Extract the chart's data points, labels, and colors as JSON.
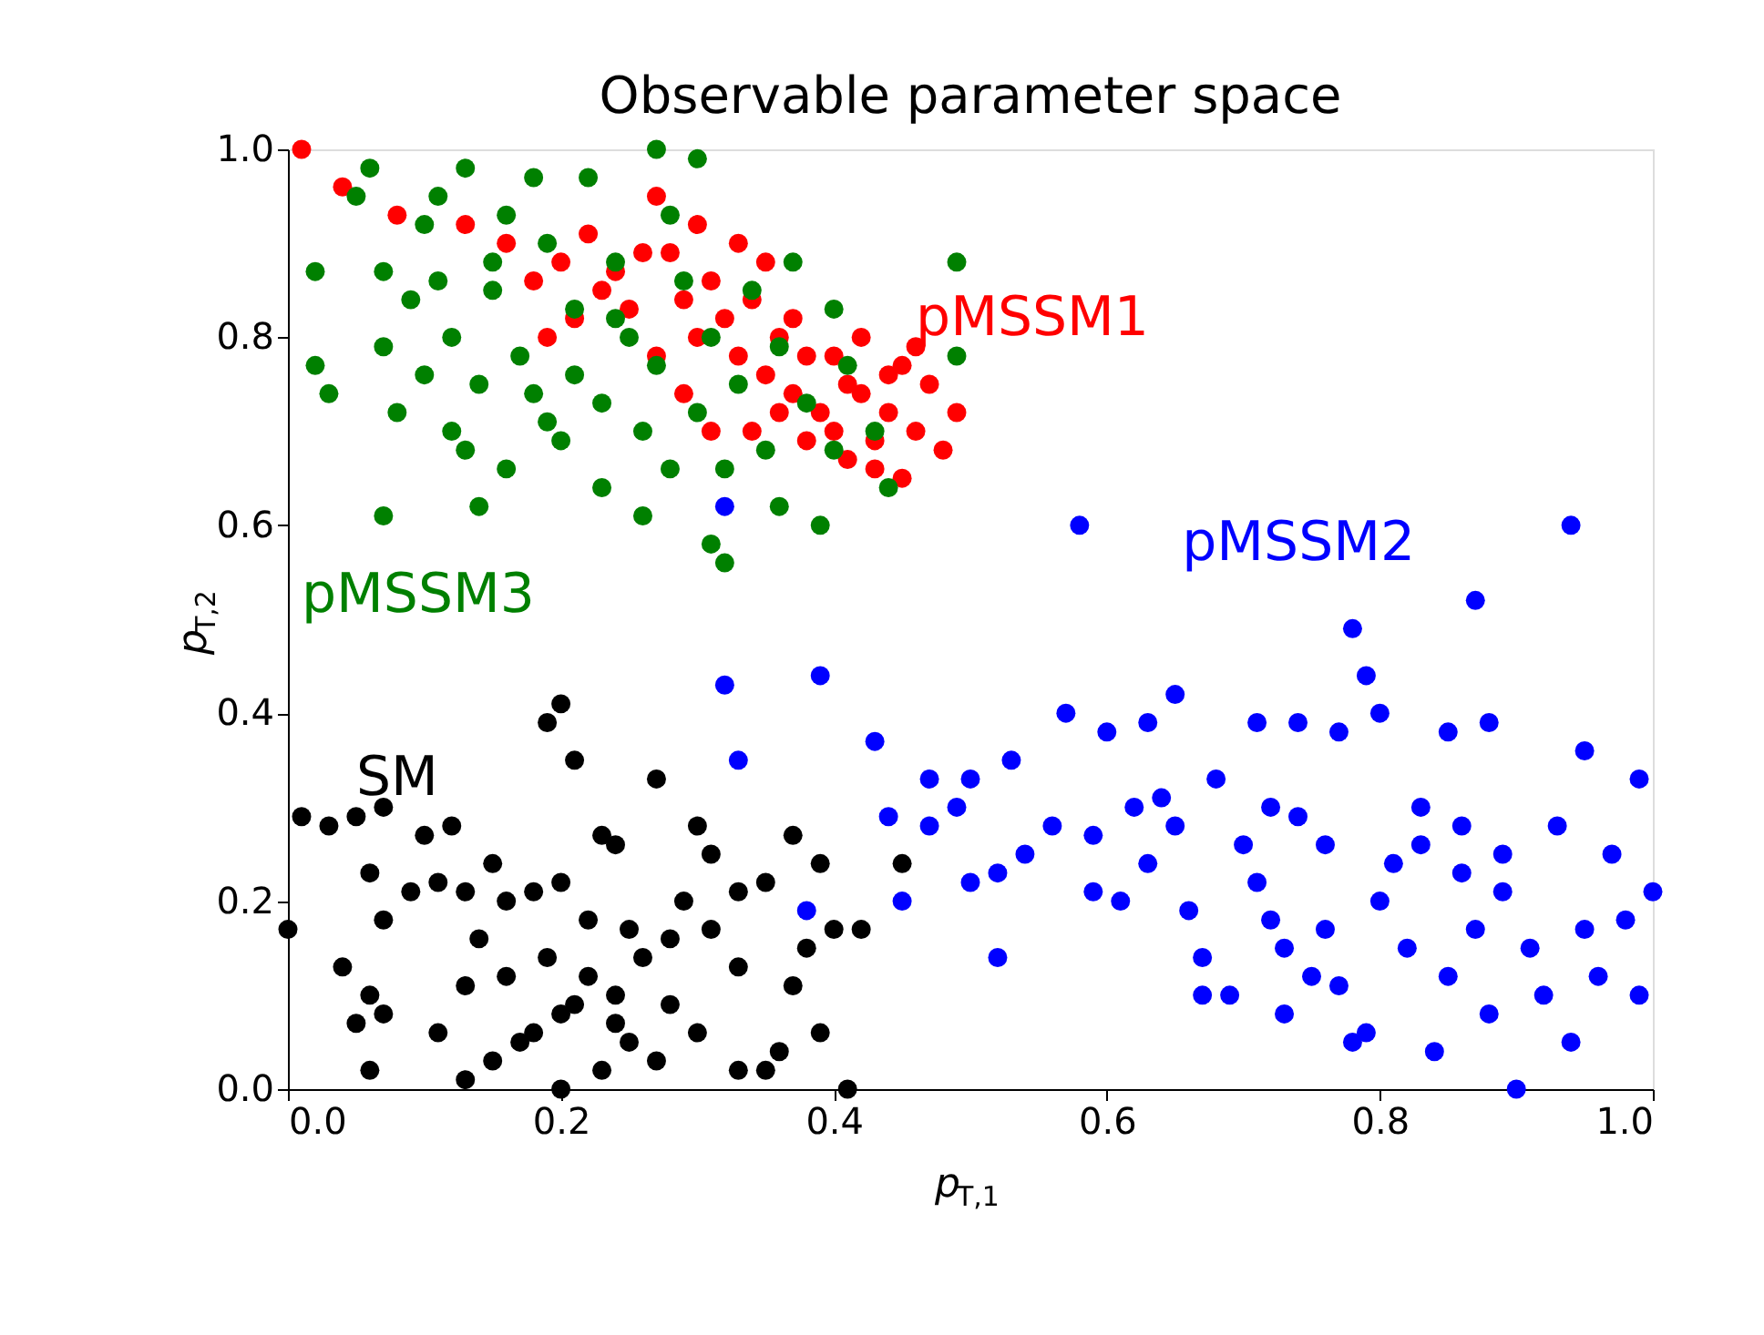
{
  "chart_data": {
    "type": "scatter",
    "title": "Observable parameter space",
    "xlabel": "p$_{T,1}$",
    "ylabel": "p$_{T,2}$",
    "xlim": [
      0,
      1
    ],
    "ylim": [
      0,
      1
    ],
    "xticks": [
      {
        "value": 0,
        "label": "0.0"
      },
      0.2,
      0.4,
      0.6,
      0.8,
      {
        "value": 1,
        "label": "1.0"
      }
    ],
    "yticks": [
      {
        "value": 0,
        "label": "0.0"
      },
      0.2,
      0.4,
      0.6,
      0.8,
      {
        "value": 1,
        "label": "1.0"
      }
    ],
    "grid": false,
    "marker": "circle",
    "series": [
      {
        "name": "SM",
        "color": "#000000",
        "x": [
          0.0,
          0.01,
          0.03,
          0.05,
          0.07,
          0.1,
          0.12,
          0.11,
          0.09,
          0.06,
          0.07,
          0.06,
          0.07,
          0.05,
          0.04,
          0.06,
          0.13,
          0.11,
          0.13,
          0.14,
          0.16,
          0.18,
          0.2,
          0.22,
          0.23,
          0.24,
          0.21,
          0.2,
          0.19,
          0.27,
          0.3,
          0.31,
          0.29,
          0.33,
          0.35,
          0.37,
          0.39,
          0.38,
          0.4,
          0.42,
          0.45,
          0.37,
          0.33,
          0.3,
          0.33,
          0.35,
          0.36,
          0.39,
          0.41,
          0.25,
          0.24,
          0.2,
          0.17,
          0.15,
          0.2,
          0.23,
          0.27,
          0.28,
          0.26,
          0.19,
          0.16,
          0.22,
          0.25,
          0.28,
          0.13,
          0.15,
          0.31,
          0.18,
          0.21,
          0.24
        ],
        "values": [
          0.17,
          0.29,
          0.28,
          0.29,
          0.3,
          0.27,
          0.28,
          0.22,
          0.21,
          0.23,
          0.18,
          0.1,
          0.08,
          0.07,
          0.13,
          0.02,
          0.01,
          0.06,
          0.11,
          0.16,
          0.2,
          0.21,
          0.22,
          0.18,
          0.27,
          0.26,
          0.35,
          0.41,
          0.39,
          0.33,
          0.28,
          0.25,
          0.2,
          0.21,
          0.22,
          0.27,
          0.24,
          0.15,
          0.17,
          0.17,
          0.24,
          0.11,
          0.13,
          0.06,
          0.02,
          0.02,
          0.04,
          0.06,
          0.0,
          0.05,
          0.1,
          0.08,
          0.05,
          0.03,
          0.0,
          0.02,
          0.03,
          0.09,
          0.14,
          0.14,
          0.12,
          0.12,
          0.17,
          0.16,
          0.21,
          0.24,
          0.17,
          0.06,
          0.09,
          0.07
        ]
      },
      {
        "name": "pMSSM2",
        "color": "#0000ff",
        "x": [
          0.32,
          0.58,
          0.94,
          0.87,
          0.78,
          0.79,
          0.32,
          0.39,
          0.43,
          0.33,
          0.47,
          0.5,
          0.53,
          0.57,
          0.6,
          0.63,
          0.65,
          0.71,
          0.74,
          0.77,
          0.8,
          0.85,
          0.88,
          0.95,
          0.99,
          0.38,
          0.45,
          0.44,
          0.47,
          0.49,
          0.5,
          0.52,
          0.52,
          0.54,
          0.56,
          0.59,
          0.59,
          0.61,
          0.62,
          0.63,
          0.65,
          0.66,
          0.67,
          0.67,
          0.69,
          0.7,
          0.71,
          0.72,
          0.73,
          0.73,
          0.74,
          0.75,
          0.76,
          0.77,
          0.78,
          0.79,
          0.8,
          0.81,
          0.82,
          0.83,
          0.84,
          0.85,
          0.86,
          0.87,
          0.88,
          0.89,
          0.9,
          0.91,
          0.92,
          0.93,
          0.94,
          0.95,
          0.96,
          0.97,
          0.98,
          0.99,
          1.0,
          0.68,
          0.72,
          0.76,
          0.64,
          0.83,
          0.86,
          0.89
        ],
        "values": [
          0.62,
          0.6,
          0.6,
          0.52,
          0.49,
          0.44,
          0.43,
          0.44,
          0.37,
          0.35,
          0.33,
          0.33,
          0.35,
          0.4,
          0.38,
          0.39,
          0.42,
          0.39,
          0.39,
          0.38,
          0.4,
          0.38,
          0.39,
          0.36,
          0.33,
          0.19,
          0.2,
          0.29,
          0.28,
          0.3,
          0.22,
          0.23,
          0.14,
          0.25,
          0.28,
          0.27,
          0.21,
          0.2,
          0.3,
          0.24,
          0.28,
          0.19,
          0.14,
          0.1,
          0.1,
          0.26,
          0.22,
          0.18,
          0.08,
          0.15,
          0.29,
          0.12,
          0.17,
          0.11,
          0.05,
          0.06,
          0.2,
          0.24,
          0.15,
          0.3,
          0.04,
          0.12,
          0.23,
          0.17,
          0.08,
          0.21,
          0.0,
          0.15,
          0.1,
          0.28,
          0.05,
          0.17,
          0.12,
          0.25,
          0.18,
          0.1,
          0.21,
          0.33,
          0.3,
          0.26,
          0.31,
          0.26,
          0.28,
          0.25
        ]
      },
      {
        "name": "pMSSM1",
        "color": "#ff0000",
        "x": [
          0.01,
          0.04,
          0.08,
          0.13,
          0.16,
          0.18,
          0.2,
          0.22,
          0.24,
          0.25,
          0.27,
          0.28,
          0.29,
          0.3,
          0.31,
          0.32,
          0.33,
          0.34,
          0.35,
          0.36,
          0.37,
          0.38,
          0.39,
          0.4,
          0.41,
          0.42,
          0.43,
          0.44,
          0.45,
          0.46,
          0.47,
          0.48,
          0.49,
          0.46,
          0.44,
          0.42,
          0.4,
          0.37,
          0.35,
          0.33,
          0.3,
          0.26,
          0.23,
          0.21,
          0.19,
          0.27,
          0.29,
          0.31,
          0.38,
          0.41,
          0.45,
          0.43,
          0.36,
          0.34
        ],
        "values": [
          1.0,
          0.96,
          0.93,
          0.92,
          0.9,
          0.86,
          0.88,
          0.91,
          0.87,
          0.83,
          0.95,
          0.89,
          0.84,
          0.8,
          0.86,
          0.82,
          0.78,
          0.84,
          0.76,
          0.8,
          0.74,
          0.78,
          0.72,
          0.7,
          0.67,
          0.74,
          0.69,
          0.72,
          0.65,
          0.7,
          0.75,
          0.68,
          0.72,
          0.79,
          0.76,
          0.8,
          0.78,
          0.82,
          0.88,
          0.9,
          0.92,
          0.89,
          0.85,
          0.82,
          0.8,
          0.78,
          0.74,
          0.7,
          0.69,
          0.75,
          0.77,
          0.66,
          0.72,
          0.7
        ]
      },
      {
        "name": "pMSSM3",
        "color": "#008000",
        "x": [
          0.02,
          0.02,
          0.03,
          0.05,
          0.06,
          0.07,
          0.07,
          0.08,
          0.07,
          0.09,
          0.1,
          0.1,
          0.11,
          0.12,
          0.12,
          0.13,
          0.14,
          0.14,
          0.15,
          0.16,
          0.16,
          0.17,
          0.18,
          0.19,
          0.2,
          0.21,
          0.21,
          0.22,
          0.23,
          0.23,
          0.24,
          0.25,
          0.26,
          0.26,
          0.27,
          0.28,
          0.28,
          0.29,
          0.3,
          0.31,
          0.31,
          0.32,
          0.32,
          0.33,
          0.34,
          0.35,
          0.36,
          0.36,
          0.37,
          0.38,
          0.39,
          0.4,
          0.4,
          0.41,
          0.43,
          0.44,
          0.49,
          0.49,
          0.27,
          0.3,
          0.18,
          0.11,
          0.15,
          0.24,
          0.19,
          0.13
        ],
        "values": [
          0.87,
          0.77,
          0.74,
          0.95,
          0.98,
          0.87,
          0.79,
          0.72,
          0.61,
          0.84,
          0.92,
          0.76,
          0.86,
          0.8,
          0.7,
          0.98,
          0.62,
          0.75,
          0.85,
          0.93,
          0.66,
          0.78,
          0.74,
          0.9,
          0.69,
          0.83,
          0.76,
          0.97,
          0.64,
          0.73,
          0.88,
          0.8,
          0.7,
          0.61,
          0.77,
          0.93,
          0.66,
          0.86,
          0.72,
          0.58,
          0.8,
          0.56,
          0.66,
          0.75,
          0.85,
          0.68,
          0.79,
          0.62,
          0.88,
          0.73,
          0.6,
          0.83,
          0.68,
          0.77,
          0.7,
          0.64,
          0.88,
          0.78,
          1.0,
          0.99,
          0.97,
          0.95,
          0.88,
          0.82,
          0.71,
          0.68
        ]
      }
    ]
  }
}
